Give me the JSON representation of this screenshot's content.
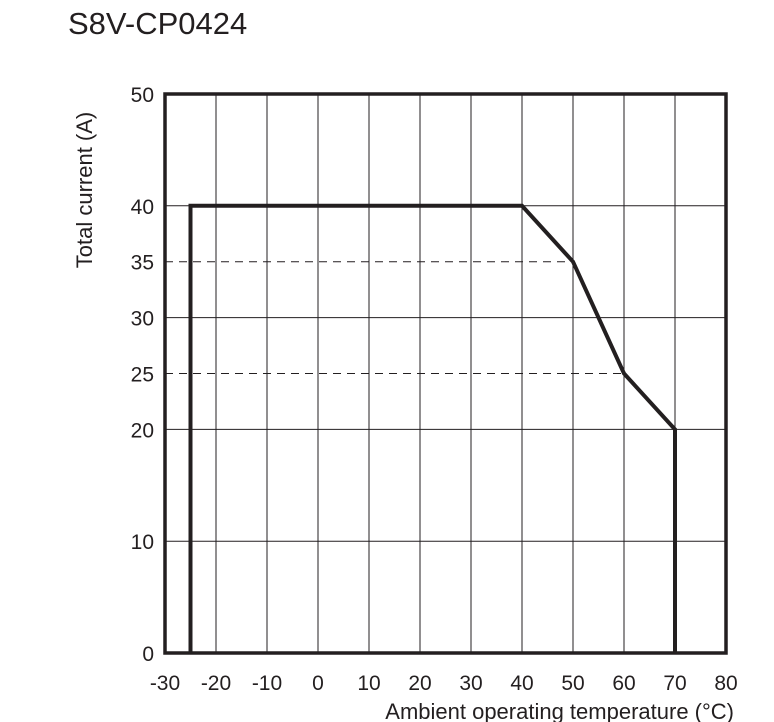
{
  "chart_data": {
    "type": "line",
    "title": "S8V-CP0424",
    "xlabel": "Ambient operating temperature (°C)",
    "ylabel": "Total current (A)",
    "xlim": [
      -30,
      80
    ],
    "ylim": [
      0,
      50
    ],
    "x_ticks": [
      -30,
      -20,
      -10,
      0,
      10,
      20,
      30,
      40,
      50,
      60,
      70,
      80
    ],
    "y_ticks": [
      0,
      10,
      20,
      25,
      30,
      35,
      40,
      50
    ],
    "grid": true,
    "dashed_reference_lines": [
      {
        "y": 35,
        "x_end": 50
      },
      {
        "y": 25,
        "x_end": 60
      }
    ],
    "series": [
      {
        "x": [
          -25,
          -25,
          40,
          50,
          60,
          70,
          70
        ],
        "y": [
          0,
          40,
          40,
          35,
          25,
          20,
          0
        ]
      }
    ]
  }
}
